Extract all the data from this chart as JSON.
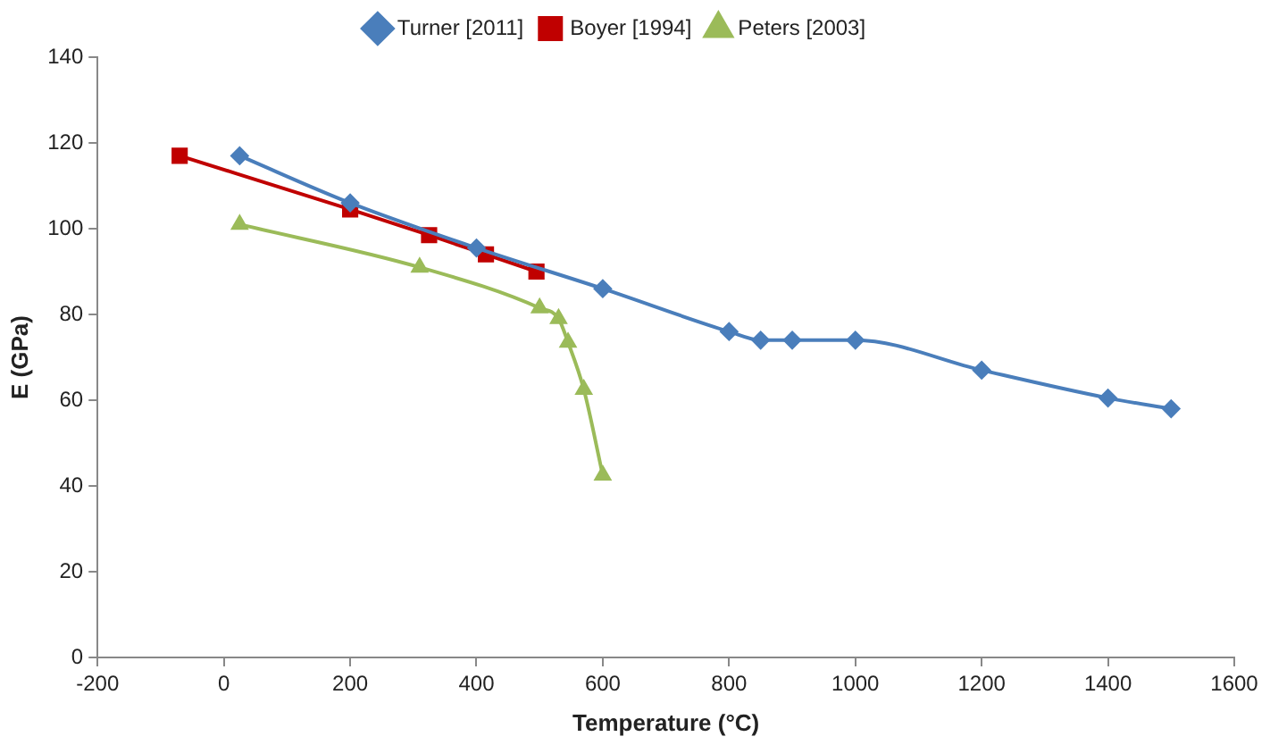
{
  "chart_data": {
    "type": "line",
    "xlabel": "Temperature (°C)",
    "ylabel": "E (GPa)",
    "xlim": [
      -200,
      1600
    ],
    "xticks": [
      -200,
      0,
      200,
      400,
      600,
      800,
      1000,
      1200,
      1400,
      1600
    ],
    "ylim": [
      0,
      140
    ],
    "yticks": [
      0,
      20,
      40,
      60,
      80,
      100,
      120,
      140
    ],
    "grid": false,
    "legend": "top",
    "series": [
      {
        "name": "Turner [2011]",
        "color": "#4a7ebb",
        "marker": "diamond",
        "x": [
          25,
          200,
          400,
          600,
          800,
          850,
          900,
          1000,
          1200,
          1400,
          1500
        ],
        "values": [
          117,
          106,
          95.5,
          86,
          76,
          74,
          74,
          74,
          67,
          60.5,
          58
        ]
      },
      {
        "name": "Boyer [1994]",
        "color": "#c00000",
        "marker": "square",
        "x": [
          -70,
          200,
          325,
          415,
          495
        ],
        "values": [
          117,
          104.5,
          98.5,
          94,
          90
        ]
      },
      {
        "name": "Peters [2003]",
        "color": "#9bbb59",
        "marker": "triangle",
        "x": [
          25,
          310,
          500,
          530,
          545,
          570,
          600
        ],
        "values": [
          101,
          91,
          81.5,
          79,
          73.5,
          62.5,
          42.5
        ]
      }
    ]
  }
}
